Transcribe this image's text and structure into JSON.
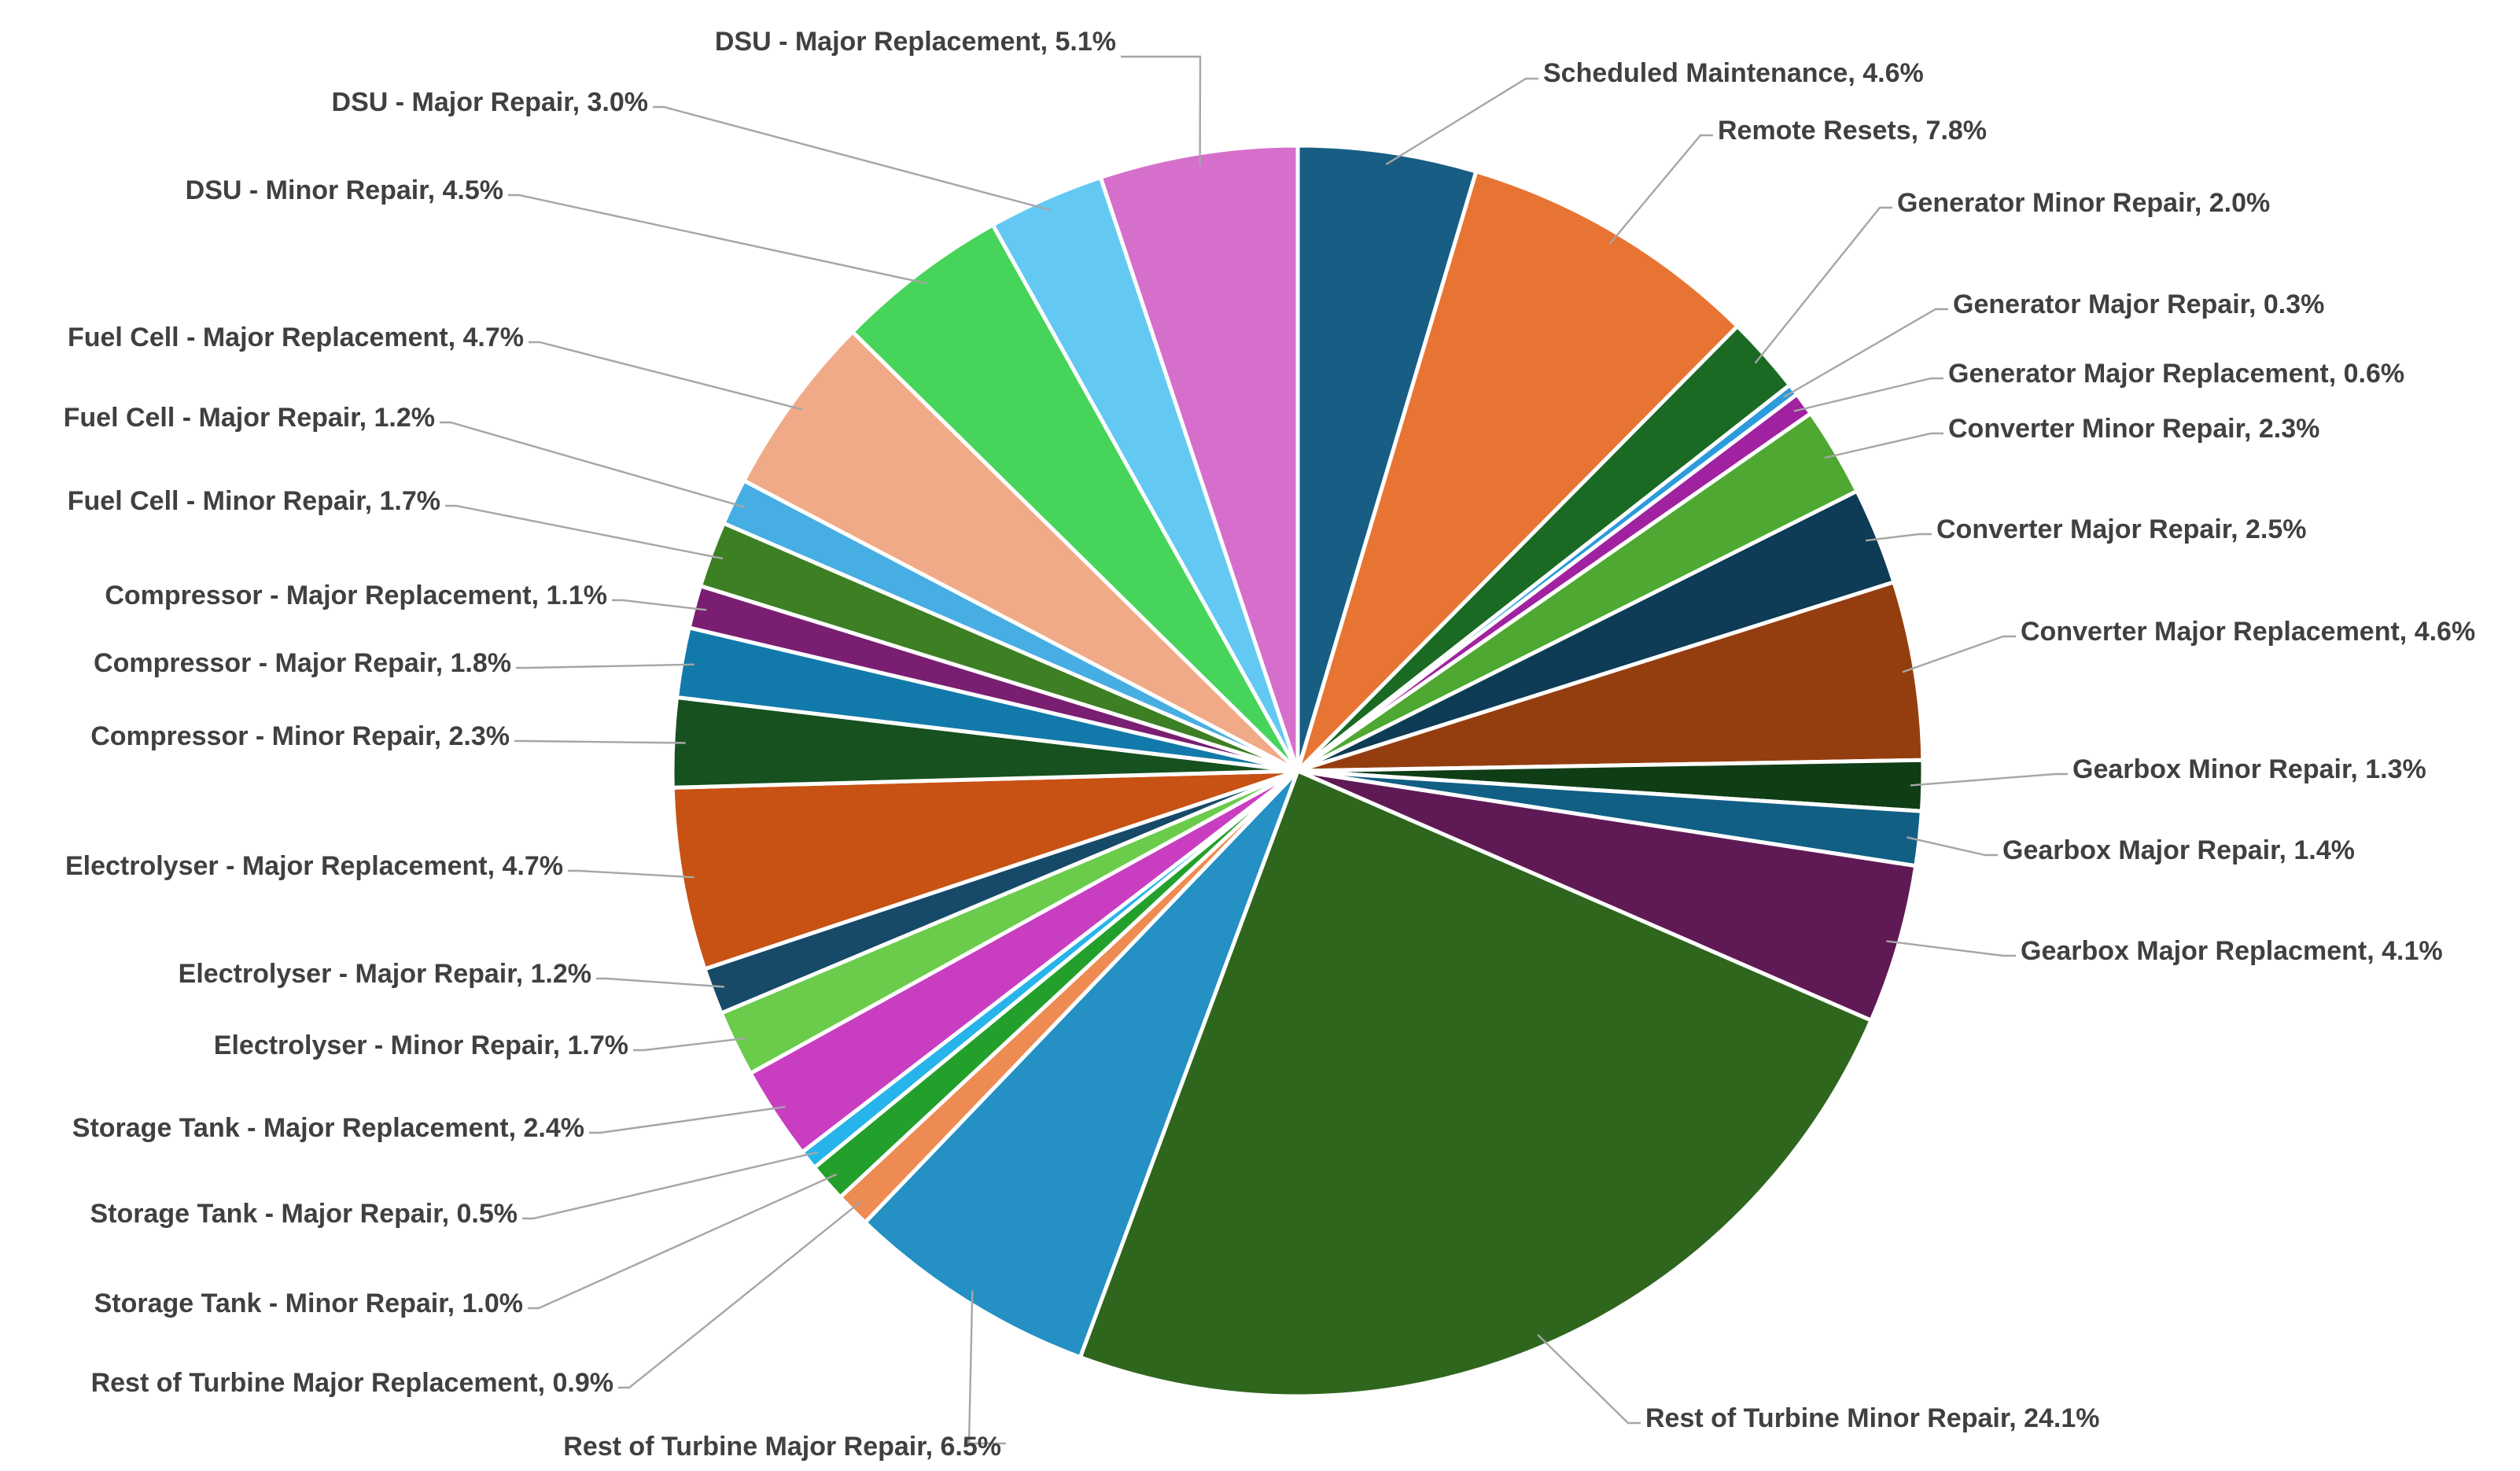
{
  "chart_data": {
    "type": "pie",
    "title": "",
    "start": "12 o'clock, clockwise",
    "slices": [
      {
        "label": "Scheduled Maintenance",
        "value": 4.6,
        "display": "Scheduled Maintenance, 4.6%",
        "color": "#185E84"
      },
      {
        "label": "Remote Resets",
        "value": 7.8,
        "display": "Remote Resets, 7.8%",
        "color": "#E87434"
      },
      {
        "label": "Generator Minor Repair",
        "value": 2.0,
        "display": "Generator Minor Repair, 2.0%",
        "color": "#1B6A24"
      },
      {
        "label": "Generator Major Repair",
        "value": 0.3,
        "display": "Generator Major Repair, 0.3%",
        "color": "#2B9BDB"
      },
      {
        "label": "Generator Major Replacement",
        "value": 0.6,
        "display": "Generator Major Replacement, 0.6%",
        "color": "#A022A0"
      },
      {
        "label": "Converter Minor Repair",
        "value": 2.3,
        "display": "Converter Minor Repair, 2.3%",
        "color": "#4EA831"
      },
      {
        "label": "Converter Major Repair",
        "value": 2.5,
        "display": "Converter Major Repair, 2.5%",
        "color": "#0E3B55"
      },
      {
        "label": "Converter Major Replacement",
        "value": 4.6,
        "display": "Converter Major Replacement, 4.6%",
        "color": "#943E0F"
      },
      {
        "label": "Gearbox Minor Repair",
        "value": 1.3,
        "display": "Gearbox Minor Repair, 1.3%",
        "color": "#0F3E16"
      },
      {
        "label": "Gearbox Major Repair",
        "value": 1.4,
        "display": "Gearbox Major Repair, 1.4%",
        "color": "#115F85"
      },
      {
        "label": "Gearbox Major Replacment",
        "value": 4.1,
        "display": "Gearbox Major Replacment, 4.1%",
        "color": "#5F1A55"
      },
      {
        "label": "Rest of Turbine Minor Repair",
        "value": 24.1,
        "display": "Rest of Turbine Minor Repair, 24.1%",
        "color": "#2F661E"
      },
      {
        "label": "Rest of Turbine Major Repair",
        "value": 6.5,
        "display": "Rest of Turbine Major Repair, 6.5%",
        "color": "#2490C4"
      },
      {
        "label": "Rest of Turbine Major Replacement",
        "value": 0.9,
        "display": "Rest of Turbine Major Replacement, 0.9%",
        "color": "#EE8B52"
      },
      {
        "label": "Storage Tank - Minor Repair",
        "value": 1.0,
        "display": "Storage Tank - Minor Repair, 1.0%",
        "color": "#23A02B"
      },
      {
        "label": "Storage Tank - Major Repair",
        "value": 0.5,
        "display": "Storage Tank - Major Repair, 0.5%",
        "color": "#27B4EA"
      },
      {
        "label": "Storage Tank - Major Replacement",
        "value": 2.4,
        "display": "Storage Tank - Major Replacement, 2.4%",
        "color": "#C93EC1"
      },
      {
        "label": "Electrolyser - Minor Repair",
        "value": 1.7,
        "display": "Electrolyser - Minor Repair, 1.7%",
        "color": "#6ACC4A"
      },
      {
        "label": "Electrolyser - Major Repair",
        "value": 1.2,
        "display": "Electrolyser - Major Repair, 1.2%",
        "color": "#174A68"
      },
      {
        "label": "Electrolyser - Major Replacement",
        "value": 4.7,
        "display": "Electrolyser - Major Replacement, 4.7%",
        "color": "#C85114"
      },
      {
        "label": "Compressor - Minor Repair",
        "value": 2.3,
        "display": "Compressor - Minor Repair, 2.3%",
        "color": "#16511F"
      },
      {
        "label": "Compressor - Major Repair",
        "value": 1.8,
        "display": "Compressor - Major Repair, 1.8%",
        "color": "#127AAA"
      },
      {
        "label": "Compressor - Major Replacement",
        "value": 1.1,
        "display": "Compressor - Major Replacement, 1.1%",
        "color": "#7A1E72"
      },
      {
        "label": "Fuel Cell - Minor Repair",
        "value": 1.7,
        "display": "Fuel Cell - Minor Repair, 1.7%",
        "color": "#3D7F23"
      },
      {
        "label": "Fuel Cell - Major Repair",
        "value": 1.2,
        "display": "Fuel Cell - Major Repair, 1.2%",
        "color": "#47AEE3"
      },
      {
        "label": "Fuel Cell - Major Replacement",
        "value": 4.7,
        "display": "Fuel Cell - Major Replacement, 4.7%",
        "color": "#F1AA87"
      },
      {
        "label": "DSU - Minor Repair",
        "value": 4.5,
        "display": "DSU - Minor Repair, 4.5%",
        "color": "#47D45B"
      },
      {
        "label": "DSU - Major Repair",
        "value": 3.0,
        "display": "DSU - Major Repair, 3.0%",
        "color": "#63C9F3"
      },
      {
        "label": "DSU - Major Replacement",
        "value": 5.1,
        "display": "DSU - Major Replacement, 5.1%",
        "color": "#D56FCB"
      }
    ]
  }
}
